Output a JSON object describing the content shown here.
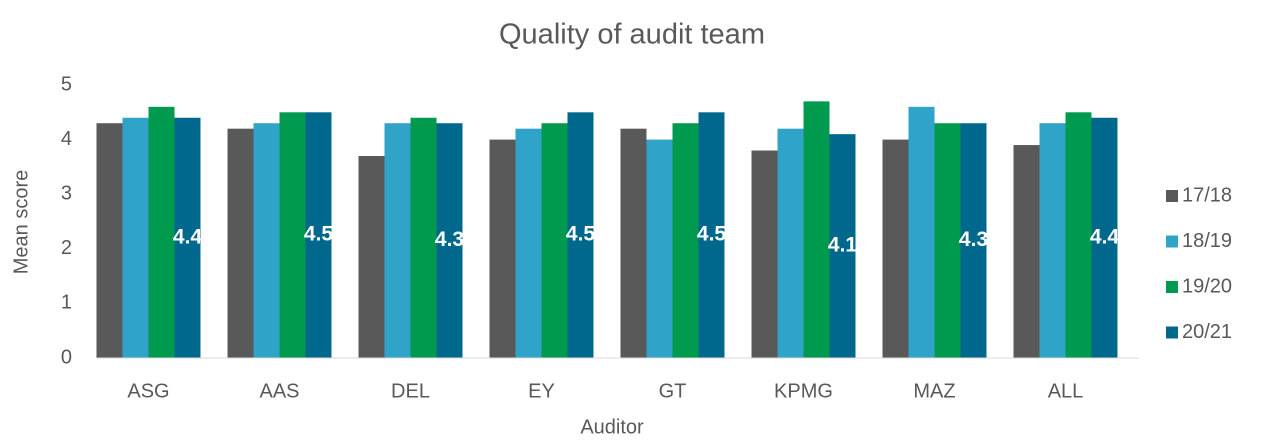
{
  "chart_data": {
    "type": "bar",
    "title": "Quality of audit team",
    "x_label": "Auditor",
    "y_label": "Mean score",
    "categories": [
      "ASG",
      "AAS",
      "DEL",
      "EY",
      "GT",
      "KPMG",
      "MAZ",
      "ALL"
    ],
    "series": [
      {
        "name": "17/18",
        "color": "#595959",
        "values": [
          4.3,
          4.2,
          3.7,
          4.0,
          4.2,
          3.8,
          4.0,
          3.9
        ]
      },
      {
        "name": "18/19",
        "color": "#2fa3c8",
        "values": [
          4.4,
          4.3,
          4.3,
          4.2,
          4.0,
          4.2,
          4.6,
          4.3
        ]
      },
      {
        "name": "19/20",
        "color": "#009a4e",
        "values": [
          4.6,
          4.5,
          4.4,
          4.3,
          4.3,
          4.7,
          4.3,
          4.5
        ]
      },
      {
        "name": "20/21",
        "color": "#00688c",
        "values": [
          4.4,
          4.5,
          4.3,
          4.5,
          4.5,
          4.1,
          4.3,
          4.4
        ],
        "data_labels": true
      }
    ],
    "ylim": [
      0,
      5
    ],
    "yticks": [
      0,
      1,
      2,
      3,
      4,
      5
    ],
    "grid": false,
    "legend": "right"
  }
}
